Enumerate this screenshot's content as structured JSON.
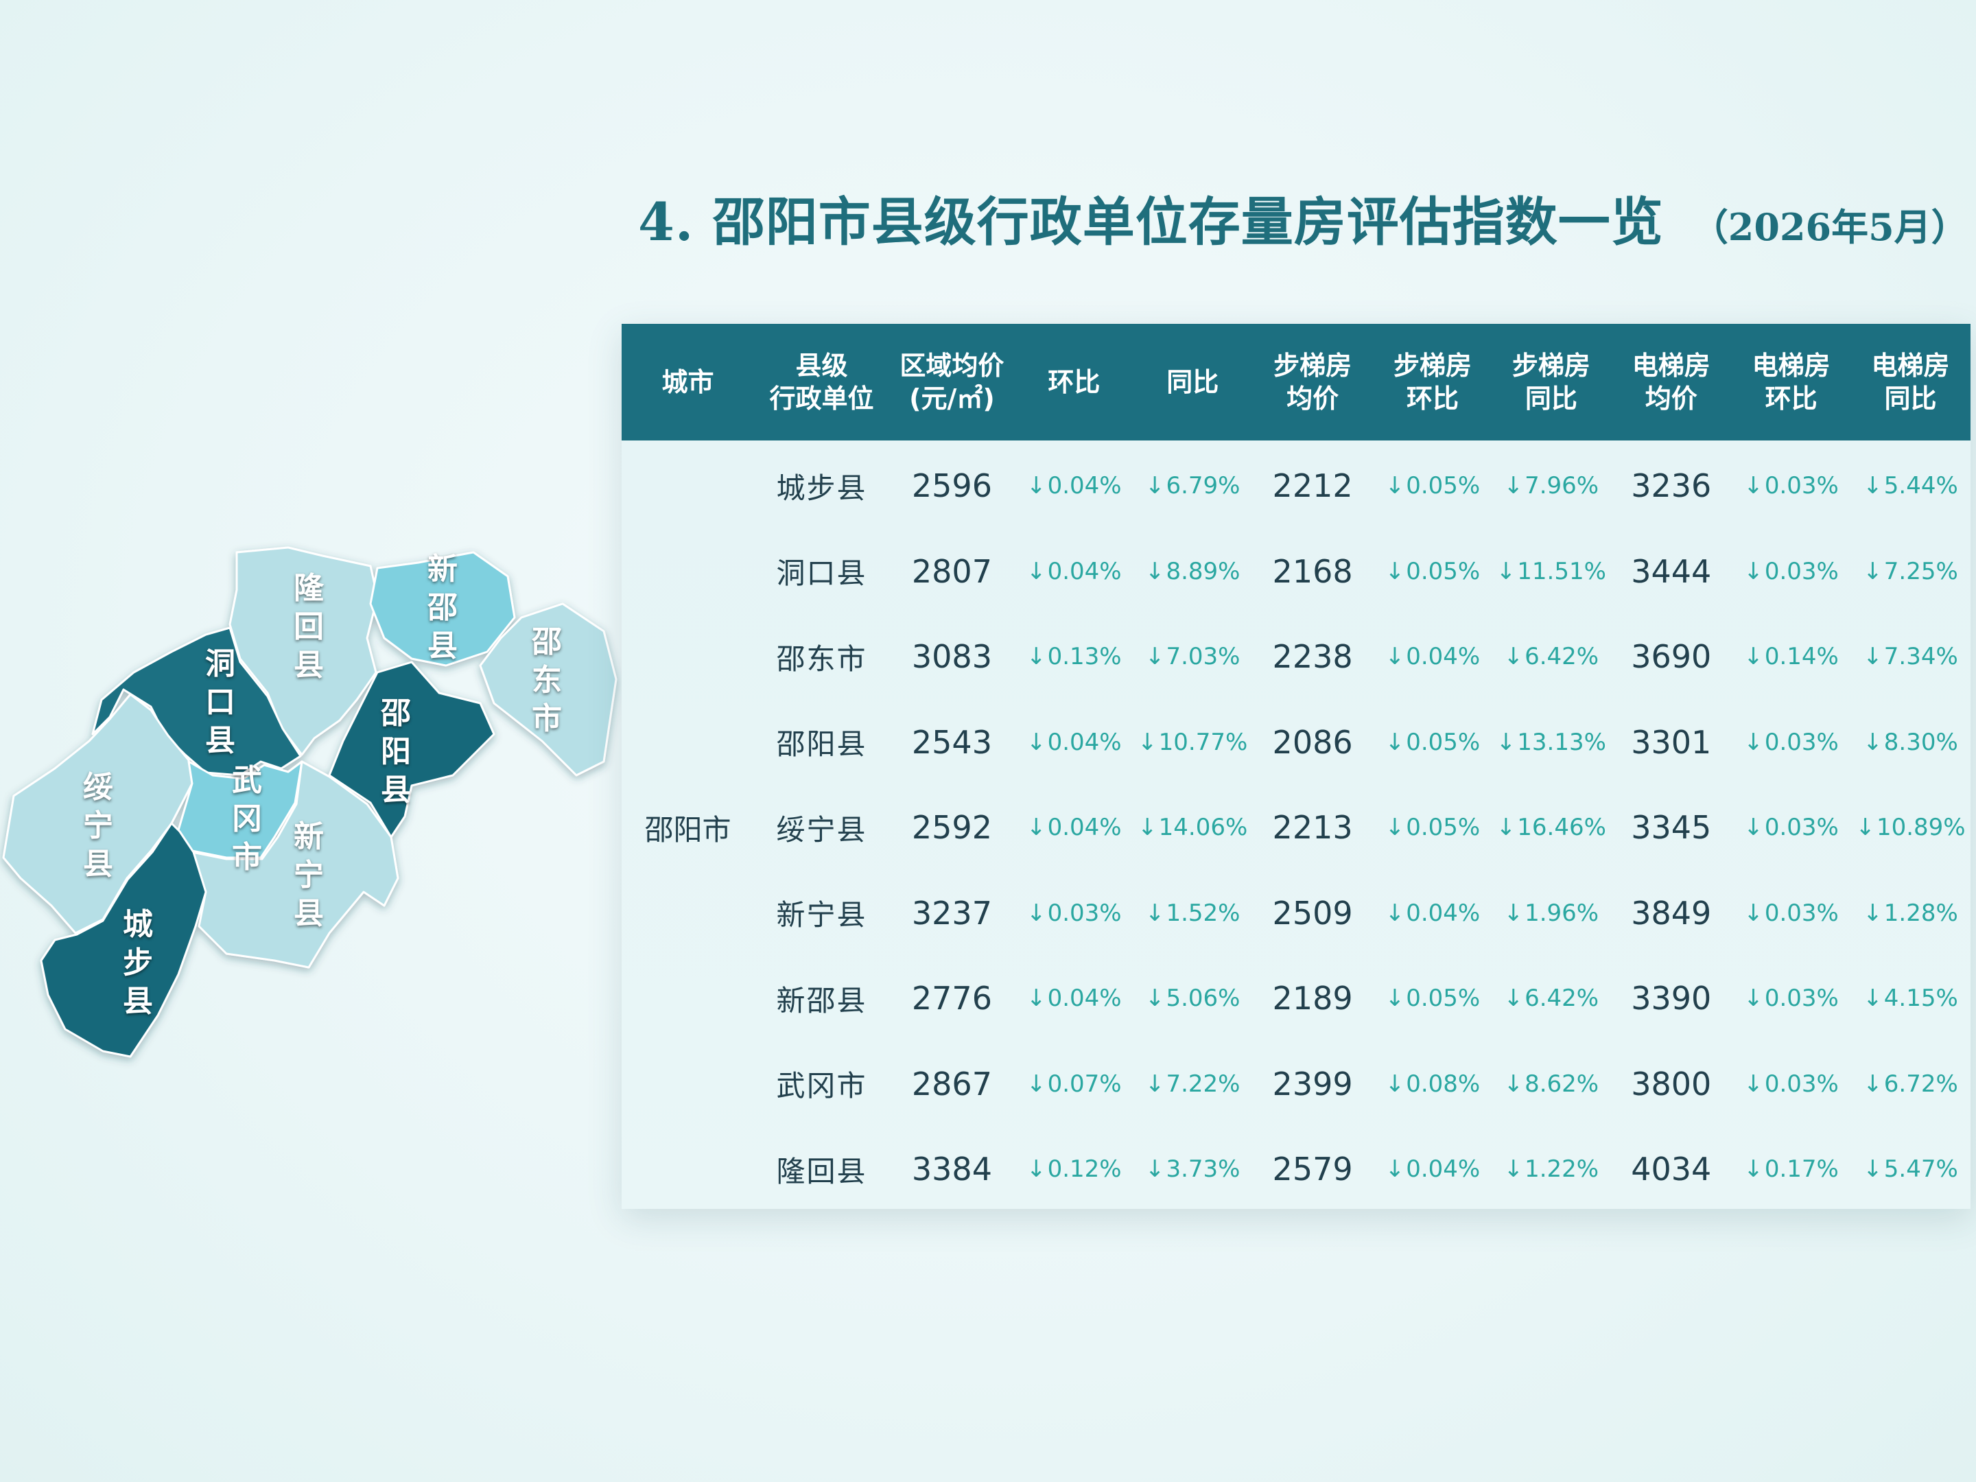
{
  "title": "4. 邵阳市县级行政单位存量房评估指数一览",
  "subtitle": "（2026年5月）",
  "colors": {
    "header": "#1c6f80",
    "down": "#2aa7a1",
    "dark_county": "#17687a",
    "mid_county": "#7fd0df",
    "light_county": "#b6dfe6"
  },
  "map": {
    "labels": [
      "隆回县",
      "新邵县",
      "邵东市",
      "洞口县",
      "邵阳县",
      "绥宁县",
      "武冈市",
      "新宁县",
      "城步县"
    ]
  },
  "table": {
    "headers": [
      {
        "line1": "城市",
        "line2": ""
      },
      {
        "line1": "县级",
        "line2": "行政单位"
      },
      {
        "line1": "区域均价",
        "line2": "(元/㎡)"
      },
      {
        "line1": "环比",
        "line2": ""
      },
      {
        "line1": "同比",
        "line2": ""
      },
      {
        "line1": "步梯房",
        "line2": "均价"
      },
      {
        "line1": "步梯房",
        "line2": "环比"
      },
      {
        "line1": "步梯房",
        "line2": "同比"
      },
      {
        "line1": "电梯房",
        "line2": "均价"
      },
      {
        "line1": "电梯房",
        "line2": "环比"
      },
      {
        "line1": "电梯房",
        "line2": "同比"
      }
    ],
    "city": "邵阳市",
    "arrow": "↓",
    "rows": [
      {
        "county": "城步县",
        "avg": "2596",
        "mom": "0.04%",
        "yoy": "6.79%",
        "stair_avg": "2212",
        "stair_mom": "0.05%",
        "stair_yoy": "7.96%",
        "elev_avg": "3236",
        "elev_mom": "0.03%",
        "elev_yoy": "5.44%"
      },
      {
        "county": "洞口县",
        "avg": "2807",
        "mom": "0.04%",
        "yoy": "8.89%",
        "stair_avg": "2168",
        "stair_mom": "0.05%",
        "stair_yoy": "11.51%",
        "elev_avg": "3444",
        "elev_mom": "0.03%",
        "elev_yoy": "7.25%"
      },
      {
        "county": "邵东市",
        "avg": "3083",
        "mom": "0.13%",
        "yoy": "7.03%",
        "stair_avg": "2238",
        "stair_mom": "0.04%",
        "stair_yoy": "6.42%",
        "elev_avg": "3690",
        "elev_mom": "0.14%",
        "elev_yoy": "7.34%"
      },
      {
        "county": "邵阳县",
        "avg": "2543",
        "mom": "0.04%",
        "yoy": "10.77%",
        "stair_avg": "2086",
        "stair_mom": "0.05%",
        "stair_yoy": "13.13%",
        "elev_avg": "3301",
        "elev_mom": "0.03%",
        "elev_yoy": "8.30%"
      },
      {
        "county": "绥宁县",
        "avg": "2592",
        "mom": "0.04%",
        "yoy": "14.06%",
        "stair_avg": "2213",
        "stair_mom": "0.05%",
        "stair_yoy": "16.46%",
        "elev_avg": "3345",
        "elev_mom": "0.03%",
        "elev_yoy": "10.89%"
      },
      {
        "county": "新宁县",
        "avg": "3237",
        "mom": "0.03%",
        "yoy": "1.52%",
        "stair_avg": "2509",
        "stair_mom": "0.04%",
        "stair_yoy": "1.96%",
        "elev_avg": "3849",
        "elev_mom": "0.03%",
        "elev_yoy": "1.28%"
      },
      {
        "county": "新邵县",
        "avg": "2776",
        "mom": "0.04%",
        "yoy": "5.06%",
        "stair_avg": "2189",
        "stair_mom": "0.05%",
        "stair_yoy": "6.42%",
        "elev_avg": "3390",
        "elev_mom": "0.03%",
        "elev_yoy": "4.15%"
      },
      {
        "county": "武冈市",
        "avg": "2867",
        "mom": "0.07%",
        "yoy": "7.22%",
        "stair_avg": "2399",
        "stair_mom": "0.08%",
        "stair_yoy": "8.62%",
        "elev_avg": "3800",
        "elev_mom": "0.03%",
        "elev_yoy": "6.72%"
      },
      {
        "county": "隆回县",
        "avg": "3384",
        "mom": "0.12%",
        "yoy": "3.73%",
        "stair_avg": "2579",
        "stair_mom": "0.04%",
        "stair_yoy": "1.22%",
        "elev_avg": "4034",
        "elev_mom": "0.17%",
        "elev_yoy": "5.47%"
      }
    ]
  }
}
